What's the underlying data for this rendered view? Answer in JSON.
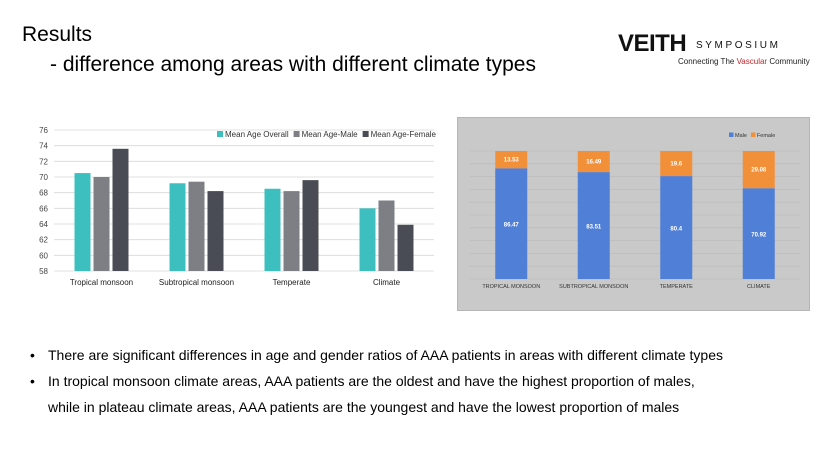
{
  "slide": {
    "title": "Results",
    "subtitle": "- difference among areas with different climate types"
  },
  "logo": {
    "brand": "VEITH",
    "brand_suffix": "SYMPOSIUM",
    "tagline_prefix": "Connecting The ",
    "tagline_highlight": "Vascular",
    "tagline_suffix": " Community",
    "accent_color": "#c0272d"
  },
  "bullets": {
    "marker": "•",
    "item1": "There are significant differences in age and gender ratios of AAA patients in areas with different climate types",
    "item2_line1": "In tropical monsoon climate areas, AAA patients are the oldest and have the highest proportion of males,",
    "item2_line2": "while in plateau climate areas, AAA patients are the youngest and have the lowest proportion of males"
  },
  "chart_data": [
    {
      "type": "bar",
      "categories": [
        "Tropical monsoon",
        "Subtropical monsoon",
        "Temperate",
        "Climate"
      ],
      "series": [
        {
          "name": "Mean Age Overall",
          "values": [
            70.5,
            69.2,
            68.5,
            66.0
          ],
          "color": "#3dbfbf"
        },
        {
          "name": "Mean Age-Male",
          "values": [
            70.0,
            69.4,
            68.2,
            67.0
          ],
          "color": "#7e7f85"
        },
        {
          "name": "Mean Age-Female",
          "values": [
            73.6,
            68.2,
            69.6,
            63.9
          ],
          "color": "#4a4c55"
        }
      ],
      "ylim": [
        58,
        76
      ],
      "yticks": [
        58,
        60,
        62,
        64,
        66,
        68,
        70,
        72,
        74,
        76
      ],
      "grid": true,
      "legend_position": "top-right"
    },
    {
      "type": "bar",
      "stacked": true,
      "percent": true,
      "categories": [
        "TROPICAL MONSOON",
        "SUBTROPICAL MONSOON",
        "TEMPERATE",
        "CLIMATE"
      ],
      "series": [
        {
          "name": "Male",
          "values": [
            86.47,
            83.51,
            80.4,
            70.92
          ],
          "labels": [
            "86.47",
            "83.51",
            "80.4",
            "70.92"
          ],
          "color": "#4f7fd6"
        },
        {
          "name": "Female",
          "values": [
            13.53,
            16.49,
            19.6,
            29.08
          ],
          "labels": [
            "13.53",
            "16.49",
            "19.6",
            "29.08"
          ],
          "color": "#f2903a"
        }
      ],
      "ylim": [
        0,
        100
      ],
      "grid": true,
      "legend_position": "top-right"
    }
  ]
}
